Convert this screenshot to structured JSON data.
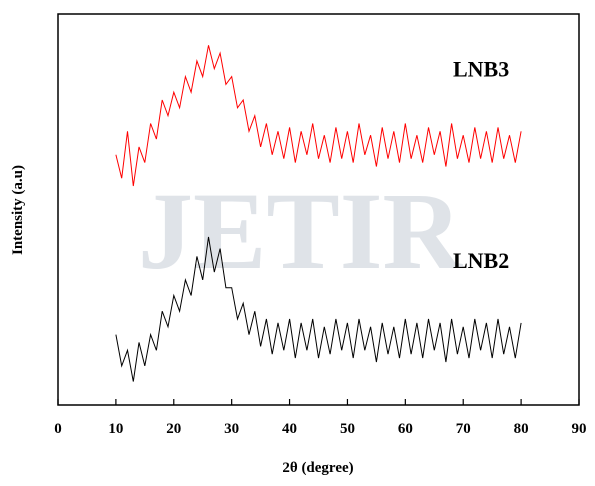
{
  "chart_data": {
    "type": "line",
    "watermark": "JETIR",
    "xlabel": "2θ (degree)",
    "ylabel": "Intensity (a.u)",
    "xlim": [
      0,
      90
    ],
    "xticks": [
      0,
      10,
      20,
      30,
      40,
      50,
      60,
      70,
      80,
      90
    ],
    "ylim": [
      0,
      100
    ],
    "yticks": [],
    "x": [
      10,
      11,
      12,
      13,
      14,
      15,
      16,
      17,
      18,
      19,
      20,
      21,
      22,
      23,
      24,
      25,
      26,
      27,
      28,
      29,
      30,
      31,
      32,
      33,
      34,
      35,
      36,
      37,
      38,
      39,
      40,
      41,
      42,
      43,
      44,
      45,
      46,
      47,
      48,
      49,
      50,
      51,
      52,
      53,
      54,
      55,
      56,
      57,
      58,
      59,
      60,
      61,
      62,
      63,
      64,
      65,
      66,
      67,
      68,
      69,
      70,
      71,
      72,
      73,
      74,
      75,
      76,
      77,
      78,
      79,
      80
    ],
    "series": [
      {
        "name": "LNB3",
        "color": "#ff0000",
        "values": [
          64,
          58,
          70,
          56,
          66,
          62,
          72,
          68,
          78,
          74,
          80,
          76,
          84,
          80,
          88,
          84,
          92,
          86,
          90,
          82,
          84,
          76,
          78,
          70,
          74,
          66,
          72,
          64,
          70,
          63,
          71,
          62,
          70,
          64,
          72,
          63,
          69,
          62,
          71,
          63,
          70,
          62,
          72,
          64,
          69,
          61,
          71,
          63,
          70,
          62,
          72,
          63,
          69,
          62,
          71,
          64,
          70,
          61,
          72,
          63,
          69,
          62,
          71,
          63,
          70,
          62,
          71,
          63,
          69,
          62,
          70
        ]
      },
      {
        "name": "LNB2",
        "color": "#000000",
        "values": [
          18,
          10,
          14,
          6,
          16,
          10,
          18,
          14,
          24,
          20,
          28,
          24,
          32,
          28,
          38,
          32,
          43,
          34,
          40,
          30,
          30,
          22,
          26,
          18,
          24,
          15,
          22,
          13,
          21,
          14,
          22,
          12,
          21,
          14,
          22,
          12,
          20,
          13,
          22,
          14,
          21,
          12,
          22,
          14,
          20,
          11,
          21,
          13,
          20,
          12,
          22,
          13,
          21,
          12,
          22,
          14,
          21,
          11,
          22,
          13,
          20,
          12,
          22,
          14,
          21,
          12,
          22,
          13,
          20,
          12,
          21
        ]
      }
    ]
  }
}
